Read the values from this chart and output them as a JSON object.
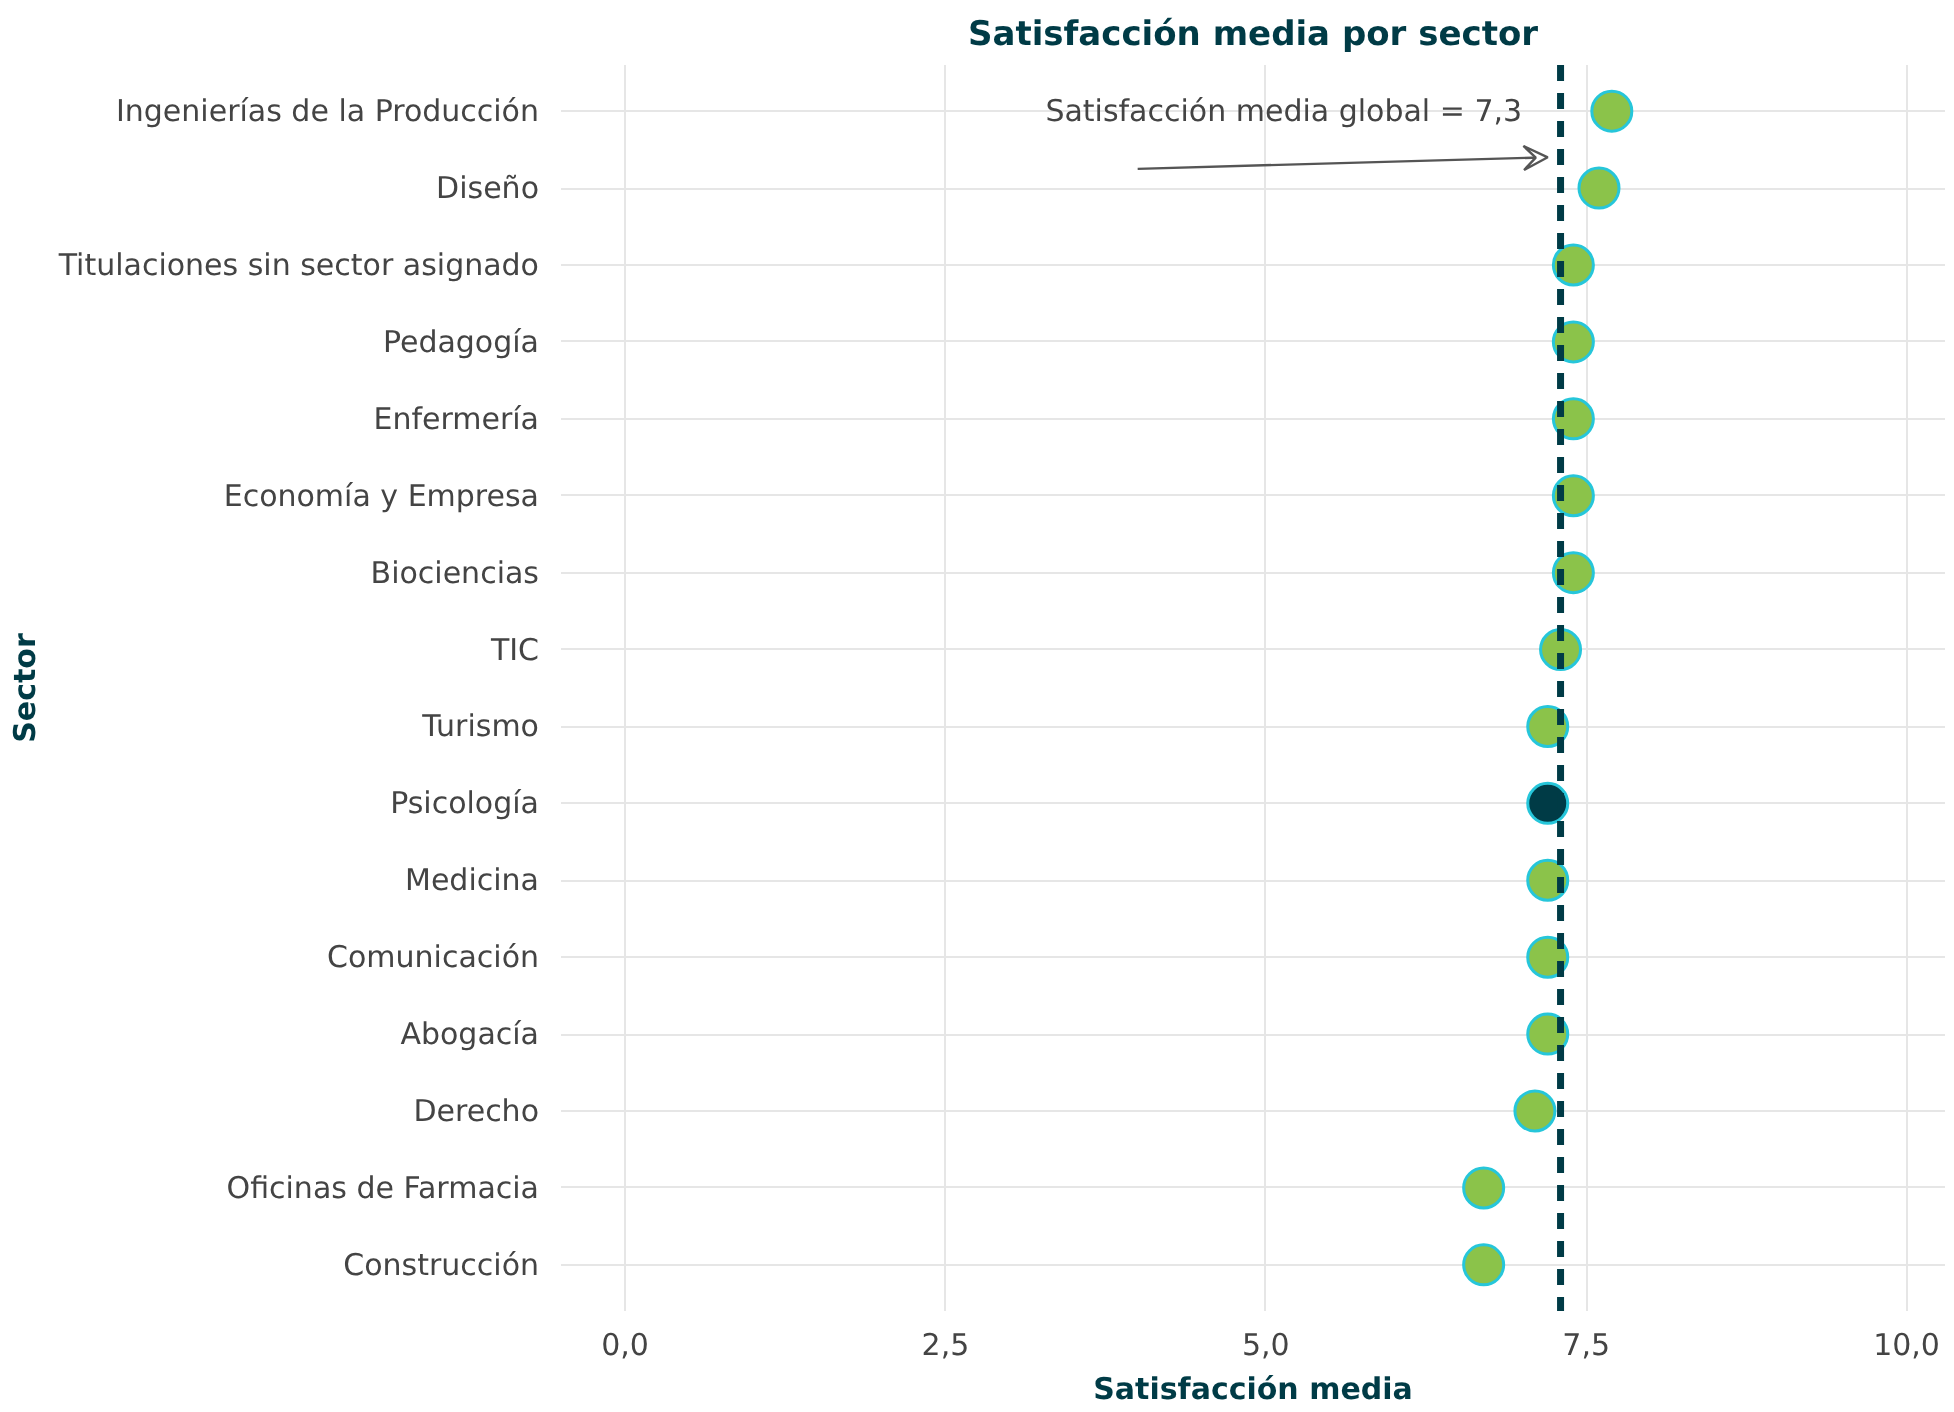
{
  "chart_data": {
    "type": "scatter",
    "title": "Satisfacción media por sector",
    "xlabel": "Satisfacción media",
    "ylabel": "Sector",
    "categories": [
      "Ingenierías de la Producción",
      "Diseño",
      "Titulaciones sin sector asignado",
      "Pedagogía",
      "Enfermería",
      "Economía y Empresa",
      "Biociencias",
      "TIC",
      "Turismo",
      "Psicología",
      "Medicina",
      "Comunicación",
      "Abogacía",
      "Derecho",
      "Oficinas de Farmacia",
      "Construcción"
    ],
    "orientation": "horizontal",
    "values": [
      7.7,
      7.6,
      7.4,
      7.4,
      7.4,
      7.4,
      7.4,
      7.3,
      7.2,
      7.2,
      7.2,
      7.2,
      7.2,
      7.1,
      6.7,
      6.7
    ],
    "colors": [
      "#8bc34a",
      "#8bc34a",
      "#8bc34a",
      "#8bc34a",
      "#8bc34a",
      "#8bc34a",
      "#8bc34a",
      "#8bc34a",
      "#8bc34a",
      "#003b46",
      "#8bc34a",
      "#8bc34a",
      "#8bc34a",
      "#8bc34a",
      "#8bc34a",
      "#8bc34a"
    ],
    "xlim": [
      -0.5,
      10.3
    ],
    "xticks": [
      {
        "value": 0,
        "label": "0,0"
      },
      {
        "value": 2.5,
        "label": "2,5"
      },
      {
        "value": 5,
        "label": "5,0"
      },
      {
        "value": 7.5,
        "label": "7,5"
      },
      {
        "value": 10,
        "label": "10,0"
      }
    ],
    "ref_lines": [
      {
        "axis": "x",
        "value": 7.3,
        "label": "Satisfacción media global = 7,3",
        "color": "#003b46",
        "line_style": "dashed"
      }
    ],
    "grid": true,
    "marker": "circle"
  }
}
